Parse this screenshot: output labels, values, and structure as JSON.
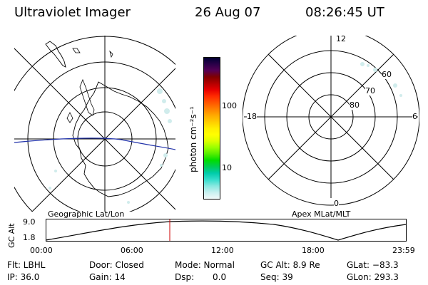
{
  "header": {
    "instrument": "Ultraviolet Imager",
    "date": "26 Aug 07",
    "time": "08:26:45 UT"
  },
  "left_panel": {
    "label": "Geographic Lat/Lon"
  },
  "right_panel": {
    "label": "Apex MLat/MLT",
    "mlt_labels": {
      "top": "12",
      "left": "18",
      "right": "6",
      "bottom": "0"
    },
    "lat_labels": [
      "60",
      "70",
      "80"
    ]
  },
  "colorbar": {
    "unit_label": "photon cm⁻²s⁻¹",
    "ticks": [
      "100",
      "10"
    ],
    "colors": [
      "#000033",
      "#2a0048",
      "#550055",
      "#800000",
      "#b30000",
      "#e60000",
      "#ff2a00",
      "#ff5500",
      "#ff8000",
      "#ffaa00",
      "#ffcc00",
      "#ffee00",
      "#ffff00",
      "#ddff00",
      "#99ff00",
      "#55ee00",
      "#00dd00",
      "#00cc55",
      "#00ccaa",
      "#33ddcc",
      "#88e8e0",
      "#c8f0f0",
      "#f2fafa"
    ]
  },
  "orbit": {
    "axis_label": "GC Alt",
    "ytick_top": "9.0",
    "ytick_bottom": "1.8",
    "xticks": [
      "00:00",
      "06:00",
      "12:00",
      "18:00",
      "23:59"
    ],
    "marker_color": "#cc0000"
  },
  "footer": {
    "filter": "Flt: LBHL",
    "ip": "IP: 36.0",
    "door": "Door: Closed",
    "gain": "Gain: 14",
    "mode": "Mode: Normal",
    "dsp_label": "Dsp:",
    "dsp_value": "0.0",
    "gc_alt": "GC Alt: 8.9 Re",
    "seq": "Seq: 39",
    "glat": "GLat: −83.3",
    "glon": "GLon: 293.3"
  }
}
